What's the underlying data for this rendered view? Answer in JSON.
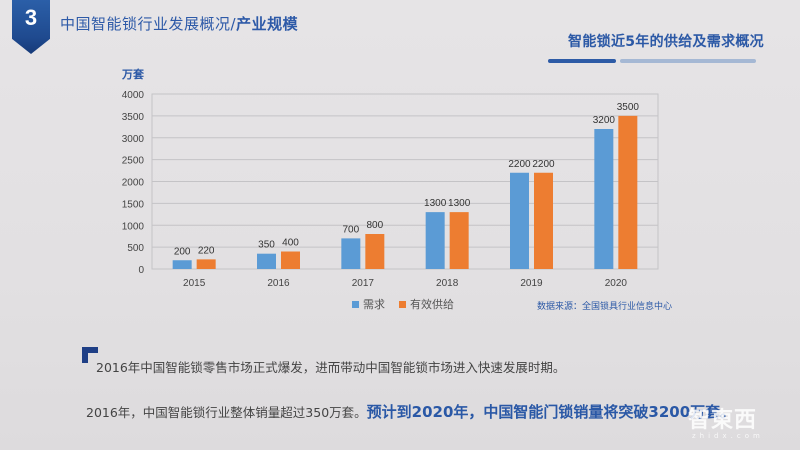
{
  "header": {
    "section_number": "3",
    "title_regular": "中国智能锁行业发展概况/",
    "title_bold": "产业规模"
  },
  "subtitle": "智能锁近5年的供给及需求概况",
  "colors": {
    "accent_blue": "#2c59a6",
    "demand": "#5b9bd5",
    "supply": "#ed7d31",
    "grid": "#c4c3c6"
  },
  "chart_data": {
    "type": "bar",
    "title": "智能锁近5年的供给及需求概况",
    "xlabel": "",
    "ylabel": "万套",
    "ylim": [
      0,
      4000
    ],
    "yticks": [
      0,
      500,
      1000,
      1500,
      2000,
      2500,
      3000,
      3500,
      4000
    ],
    "grid": true,
    "legend_position": "bottom",
    "categories": [
      "2015",
      "2016",
      "2017",
      "2018",
      "2019",
      "2020"
    ],
    "series": [
      {
        "name": "需求",
        "color": "#5b9bd5",
        "values": [
          200,
          350,
          700,
          1300,
          2200,
          3200
        ]
      },
      {
        "name": "有效供给",
        "color": "#ed7d31",
        "values": [
          220,
          400,
          800,
          1300,
          2200,
          3500
        ]
      }
    ]
  },
  "legend": {
    "demand": "需求",
    "supply": "有效供给"
  },
  "source_note": "数据来源：全国锁具行业信息中心",
  "body": {
    "line1": "2016年中国智能锁零售市场正式爆发，进而带动中国智能锁市场进入快速发展时期。",
    "line2_regular": "2016年，中国智能锁行业整体销量超过350万套。",
    "line2_emphasis": "预计到2020年，中国智能门锁销量将突破3200万套。"
  },
  "watermark": {
    "brand": "智東西",
    "domain": "zhidx.com"
  }
}
